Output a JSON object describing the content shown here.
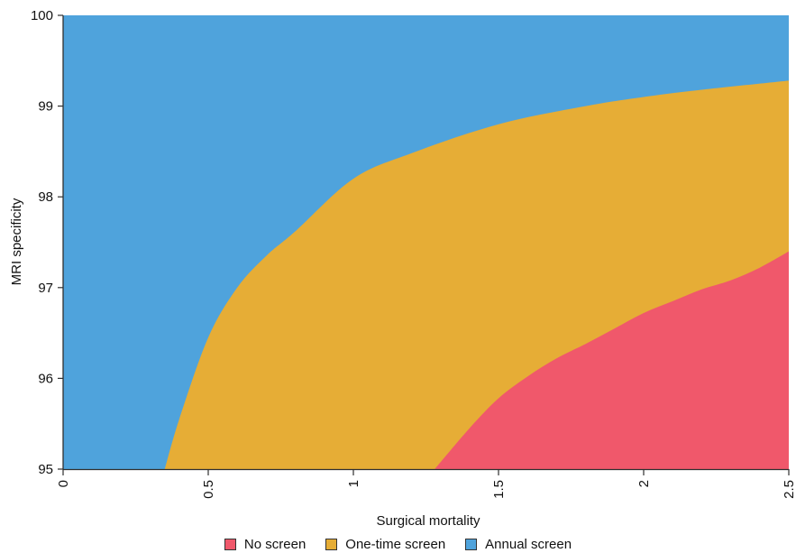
{
  "chart_data": {
    "type": "area",
    "title": "",
    "xlabel": "Surgical mortality",
    "ylabel": "MRI specificity",
    "xlim": [
      0,
      2.5
    ],
    "ylim": [
      95,
      100
    ],
    "x_ticks": [
      "0",
      "0.5",
      "1",
      "1.5",
      "2",
      "2.5"
    ],
    "y_ticks": [
      "95",
      "96",
      "97",
      "98",
      "99",
      "100"
    ],
    "legend_position": "bottom",
    "regions": [
      {
        "name": "Annual screen",
        "color": "#4FA3DC"
      },
      {
        "name": "One-time screen",
        "color": "#E6AD36"
      },
      {
        "name": "No screen",
        "color": "#F0586B"
      }
    ],
    "boundaries": [
      {
        "between": [
          "Annual screen",
          "One-time screen"
        ],
        "x": [
          0.35,
          0.4,
          0.5,
          0.6,
          0.7,
          0.8,
          1.0,
          1.2,
          1.5,
          1.8,
          2.0,
          2.2,
          2.5
        ],
        "y": [
          95.0,
          95.55,
          96.45,
          97.0,
          97.35,
          97.62,
          98.2,
          98.48,
          98.8,
          99.0,
          99.1,
          99.18,
          99.28
        ]
      },
      {
        "between": [
          "One-time screen",
          "No screen"
        ],
        "x": [
          1.28,
          1.4,
          1.5,
          1.6,
          1.7,
          1.8,
          1.9,
          2.0,
          2.1,
          2.2,
          2.3,
          2.4,
          2.5
        ],
        "y": [
          95.0,
          95.45,
          95.78,
          96.02,
          96.22,
          96.38,
          96.55,
          96.72,
          96.85,
          96.98,
          97.08,
          97.22,
          97.4
        ]
      }
    ]
  },
  "legend": {
    "items": [
      {
        "label": "No screen",
        "color": "#F0586B"
      },
      {
        "label": "One-time screen",
        "color": "#E6AD36"
      },
      {
        "label": "Annual screen",
        "color": "#4FA3DC"
      }
    ]
  }
}
